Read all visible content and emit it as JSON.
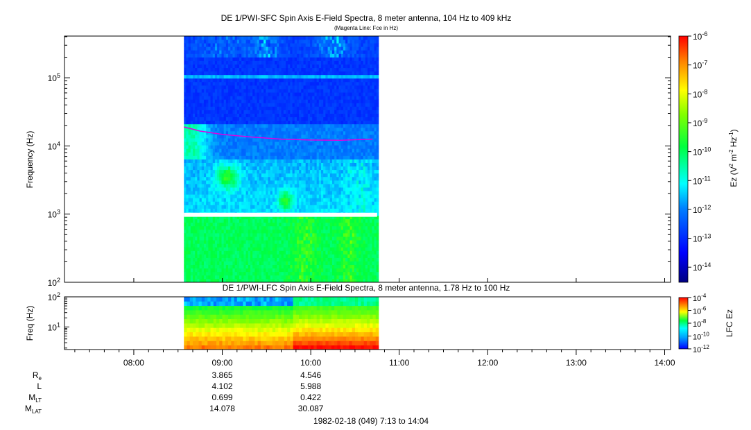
{
  "chart_data": [
    {
      "type": "heatmap",
      "title": "DE 1/PWI-SFC  Spin Axis E-Field Spectra, 8 meter antenna, 104 Hz to 409 kHz",
      "subtitle": "(Magenta Line: Fce in Hz)",
      "ylabel": "Frequency (Hz)",
      "yscale": "log",
      "ylim": [
        100,
        409000
      ],
      "ytick_labels": [
        "10^2",
        "10^3",
        "10^4",
        "10^5"
      ],
      "data_time_range": [
        "08:34",
        "10:45"
      ],
      "fce_line": {
        "name": "Fce in Hz",
        "color": "#e000e0",
        "time": [
          "08:34",
          "08:45",
          "09:00",
          "09:20",
          "09:40",
          "10:00",
          "10:20",
          "10:42"
        ],
        "hz": [
          19000,
          16500,
          14800,
          13500,
          12600,
          12200,
          12100,
          12600
        ]
      },
      "colorbar": {
        "label": "Ez (V^2 m^-2 Hz^-1)",
        "scale": "log",
        "range": [
          3e-15,
          1e-06
        ],
        "tick_labels": [
          "10^-6",
          "10^-7",
          "10^-8",
          "10^-9",
          "10^-10",
          "10^-11",
          "10^-12",
          "10^-13",
          "10^-14"
        ]
      }
    },
    {
      "type": "heatmap",
      "title": "DE 1/PWI-LFC  Spin Axis E-Field Spectra, 8 meter antenna, 1.78 Hz to 100 Hz",
      "ylabel": "Freq (Hz)",
      "yscale": "log",
      "ylim": [
        1.78,
        100
      ],
      "ytick_labels": [
        "10^1",
        "10^2"
      ],
      "data_time_range": [
        "08:34",
        "10:45"
      ],
      "colorbar": {
        "label": "LFC Ez",
        "scale": "log",
        "range": [
          1e-12,
          0.0001
        ],
        "tick_labels": [
          "10^-4",
          "10^-6",
          "10^-8",
          "10^-10",
          "10^-12"
        ]
      }
    }
  ],
  "x_axis": {
    "tick_labels": [
      "08:00",
      "09:00",
      "10:00",
      "11:00",
      "12:00",
      "13:00",
      "14:00"
    ],
    "range": [
      "07:13",
      "14:04"
    ]
  },
  "ephemeris": {
    "rows": [
      {
        "label": "R",
        "sub": "e",
        "values": [
          "3.865",
          "4.546"
        ]
      },
      {
        "label": "L",
        "sub": "",
        "values": [
          "4.102",
          "5.988"
        ]
      },
      {
        "label": "M",
        "sub": "LT",
        "values": [
          "0.699",
          "0.422"
        ]
      },
      {
        "label": "M",
        "sub": "LAT",
        "values": [
          "14.078",
          "30.087"
        ]
      }
    ],
    "at_times": [
      "09:00",
      "10:00"
    ]
  },
  "footer": "1982-02-18 (049) 7:13 to 14:04",
  "colors": {
    "frame": "#000000",
    "magenta": "#e000e0"
  }
}
